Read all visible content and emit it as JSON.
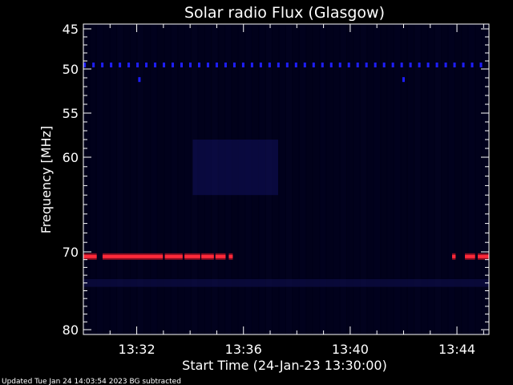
{
  "chart_data": {
    "type": "heatmap",
    "title": "Solar radio Flux (Glasgow)",
    "xlabel": "Start Time (24-Jan-23 13:30:00)",
    "ylabel": "Frequency [MHz]",
    "x_unit": "minutes after 13:30:00",
    "xlim": [
      0,
      15.2
    ],
    "ylim": [
      80,
      45
    ],
    "y_ticks": [
      {
        "value": 45,
        "label": "45"
      },
      {
        "value": 50,
        "label": "50"
      },
      {
        "value": 55,
        "label": "55"
      },
      {
        "value": 60,
        "label": "60"
      },
      {
        "value": 70,
        "label": "70"
      },
      {
        "value": 80,
        "label": "80"
      }
    ],
    "x_ticks": [
      {
        "value": 2,
        "label": "13:32"
      },
      {
        "value": 6,
        "label": "13:36"
      },
      {
        "value": 10,
        "label": "13:40"
      },
      {
        "value": 14,
        "label": "13:44"
      }
    ],
    "series": [
      {
        "frequency_mhz": 49.5,
        "color": "#1e1eff",
        "pattern": "periodic dots",
        "spacing_min": 0.33,
        "range": [
          0,
          15.2
        ]
      },
      {
        "frequency_mhz": 51.2,
        "color": "#1e1eff",
        "pattern": "isolated dots",
        "times": [
          2.1,
          12.0
        ]
      },
      {
        "frequency_mhz": 70.6,
        "color": "#ff2a3a",
        "pattern": "intermittent band",
        "segments": [
          [
            0,
            0.5
          ],
          [
            0.72,
            2.98
          ],
          [
            3.05,
            3.72
          ],
          [
            3.79,
            4.38
          ],
          [
            4.42,
            4.89
          ],
          [
            4.95,
            5.33
          ],
          [
            5.45,
            5.6
          ],
          [
            13.82,
            13.95
          ],
          [
            14.3,
            14.68
          ],
          [
            14.78,
            15.2
          ]
        ]
      }
    ],
    "background": "#000018",
    "grid": false,
    "legend": "none",
    "footer": "Updated Tue Jan 24 14:03:54 2023    BG subtracted"
  }
}
